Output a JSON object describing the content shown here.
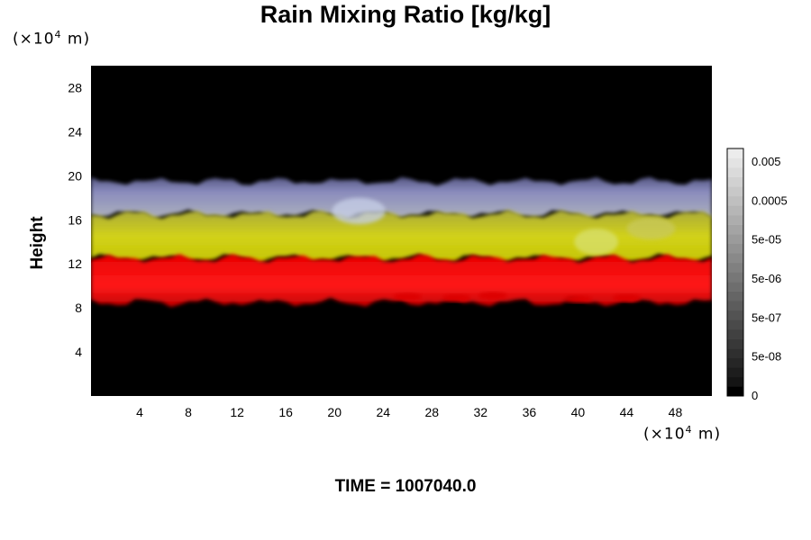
{
  "chart_data": {
    "type": "heatmap",
    "title": "Rain Mixing Ratio [kg/kg]",
    "ylabel": "Height",
    "y_unit_prefix": "(×10",
    "y_unit_exp": "4",
    "y_unit_suffix": " m)",
    "x_unit_prefix": "(×10",
    "x_unit_exp": "4",
    "x_unit_suffix": " m)",
    "xlim": [
      0,
      51
    ],
    "ylim": [
      0,
      30
    ],
    "x_ticks": [
      4,
      8,
      12,
      16,
      20,
      24,
      28,
      32,
      36,
      40,
      44,
      48
    ],
    "y_ticks": [
      4,
      8,
      12,
      16,
      20,
      24,
      28
    ],
    "layers": [
      {
        "band": "red",
        "color": "#ee1010",
        "y_bottom": 8.5,
        "y_top": 12.5
      },
      {
        "band": "yellow",
        "color": "#c8c81e",
        "y_bottom": 12.5,
        "y_top": 16.5
      },
      {
        "band": "blue-grey",
        "color": "#8f90c4",
        "y_bottom": 16.5,
        "y_top": 19.5
      }
    ],
    "colorbar": {
      "labels": [
        "0.005",
        "0.0005",
        "5e-05",
        "5e-06",
        "5e-07",
        "5e-08",
        "0"
      ],
      "colors": [
        "#000000",
        "#141414",
        "#1d1d1d",
        "#262626",
        "#2f2f2f",
        "#383838",
        "#414141",
        "#4a4a4a",
        "#535353",
        "#5c5c5c",
        "#656565",
        "#6e6e6e",
        "#777777",
        "#808080",
        "#898989",
        "#929292",
        "#9b9b9b",
        "#a4a4a4",
        "#adadad",
        "#b6b6b6",
        "#bfbfbf",
        "#c8c8c8",
        "#d1d1d1",
        "#dadada",
        "#e3e3e3",
        "#ececec"
      ]
    }
  },
  "footer": {
    "time_label": "TIME = 1007040.0"
  }
}
